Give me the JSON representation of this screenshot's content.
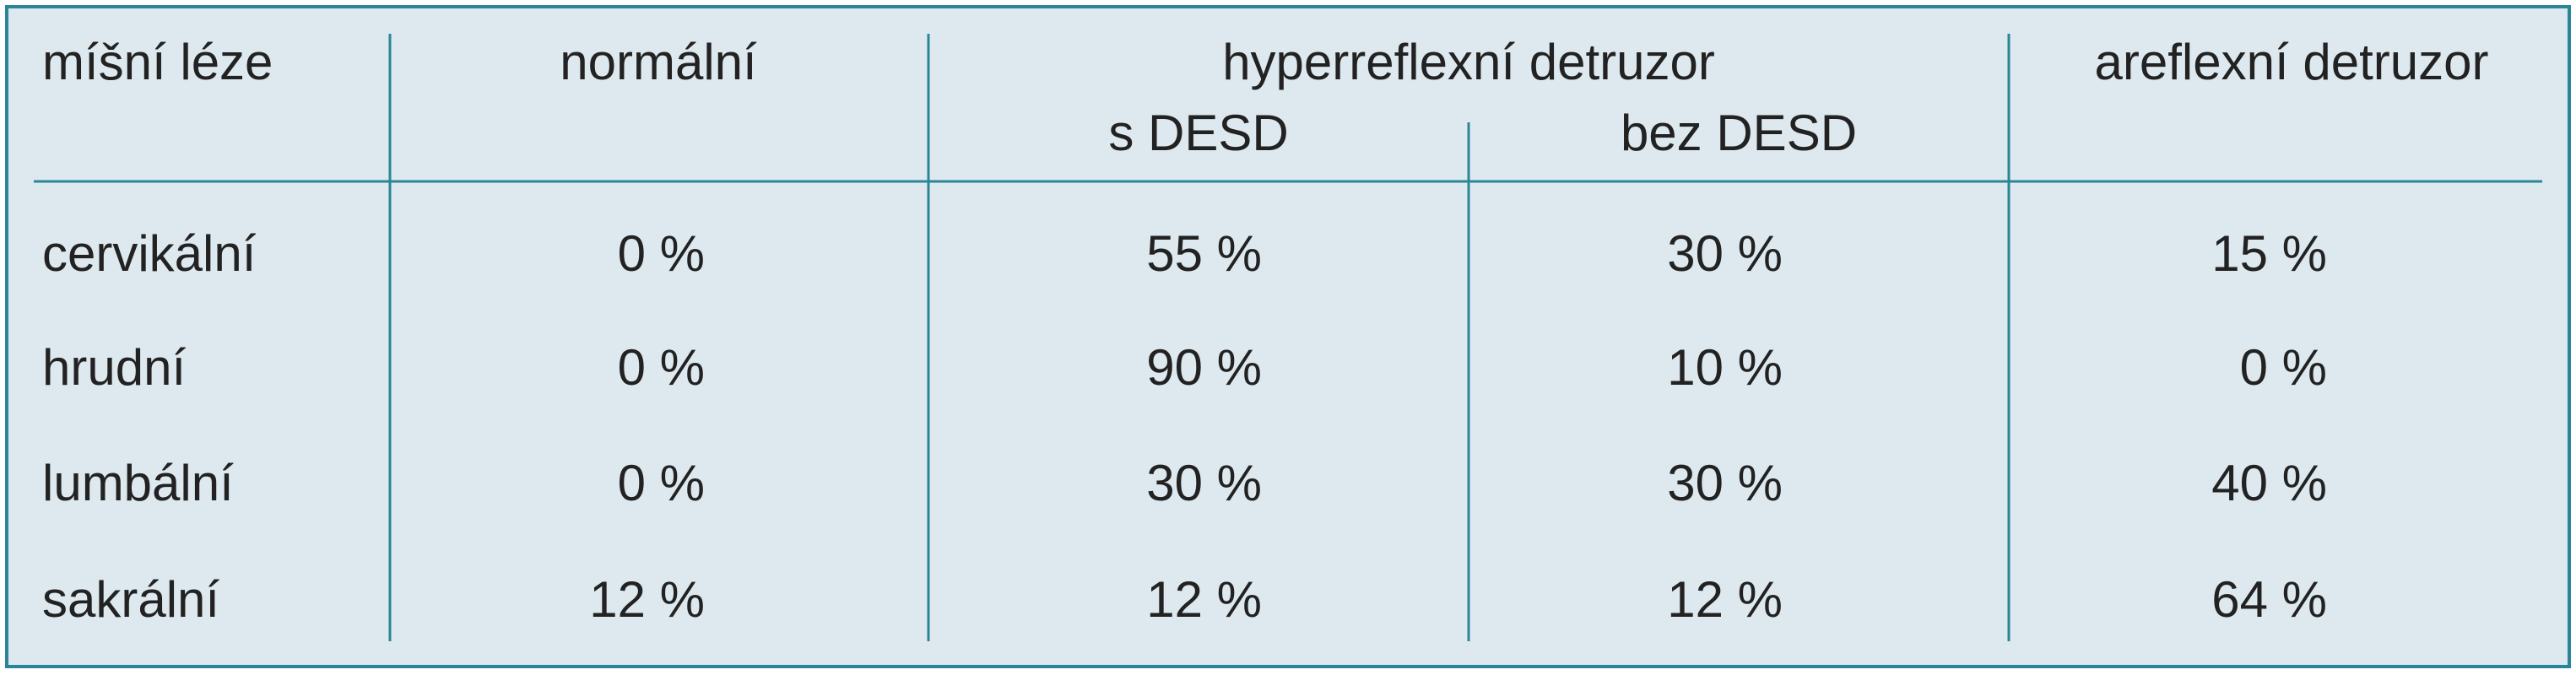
{
  "table": {
    "header": [
      "míšní léze",
      "normální",
      "hyperreflexní detruzor",
      "areflexní detruzor"
    ],
    "subheader": [
      "s DESD",
      "bez DESD"
    ],
    "rows": [
      [
        "cervikální",
        "0 %",
        "55 %",
        "30 %",
        "15 %"
      ],
      [
        "hrudní",
        "0 %",
        "90 %",
        "10 %",
        "0 %"
      ],
      [
        "lumbální",
        "0 %",
        "30 %",
        "30 %",
        "40 %"
      ],
      [
        "sakrální",
        "12 %",
        "12 %",
        "12 %",
        "64 %"
      ]
    ]
  }
}
